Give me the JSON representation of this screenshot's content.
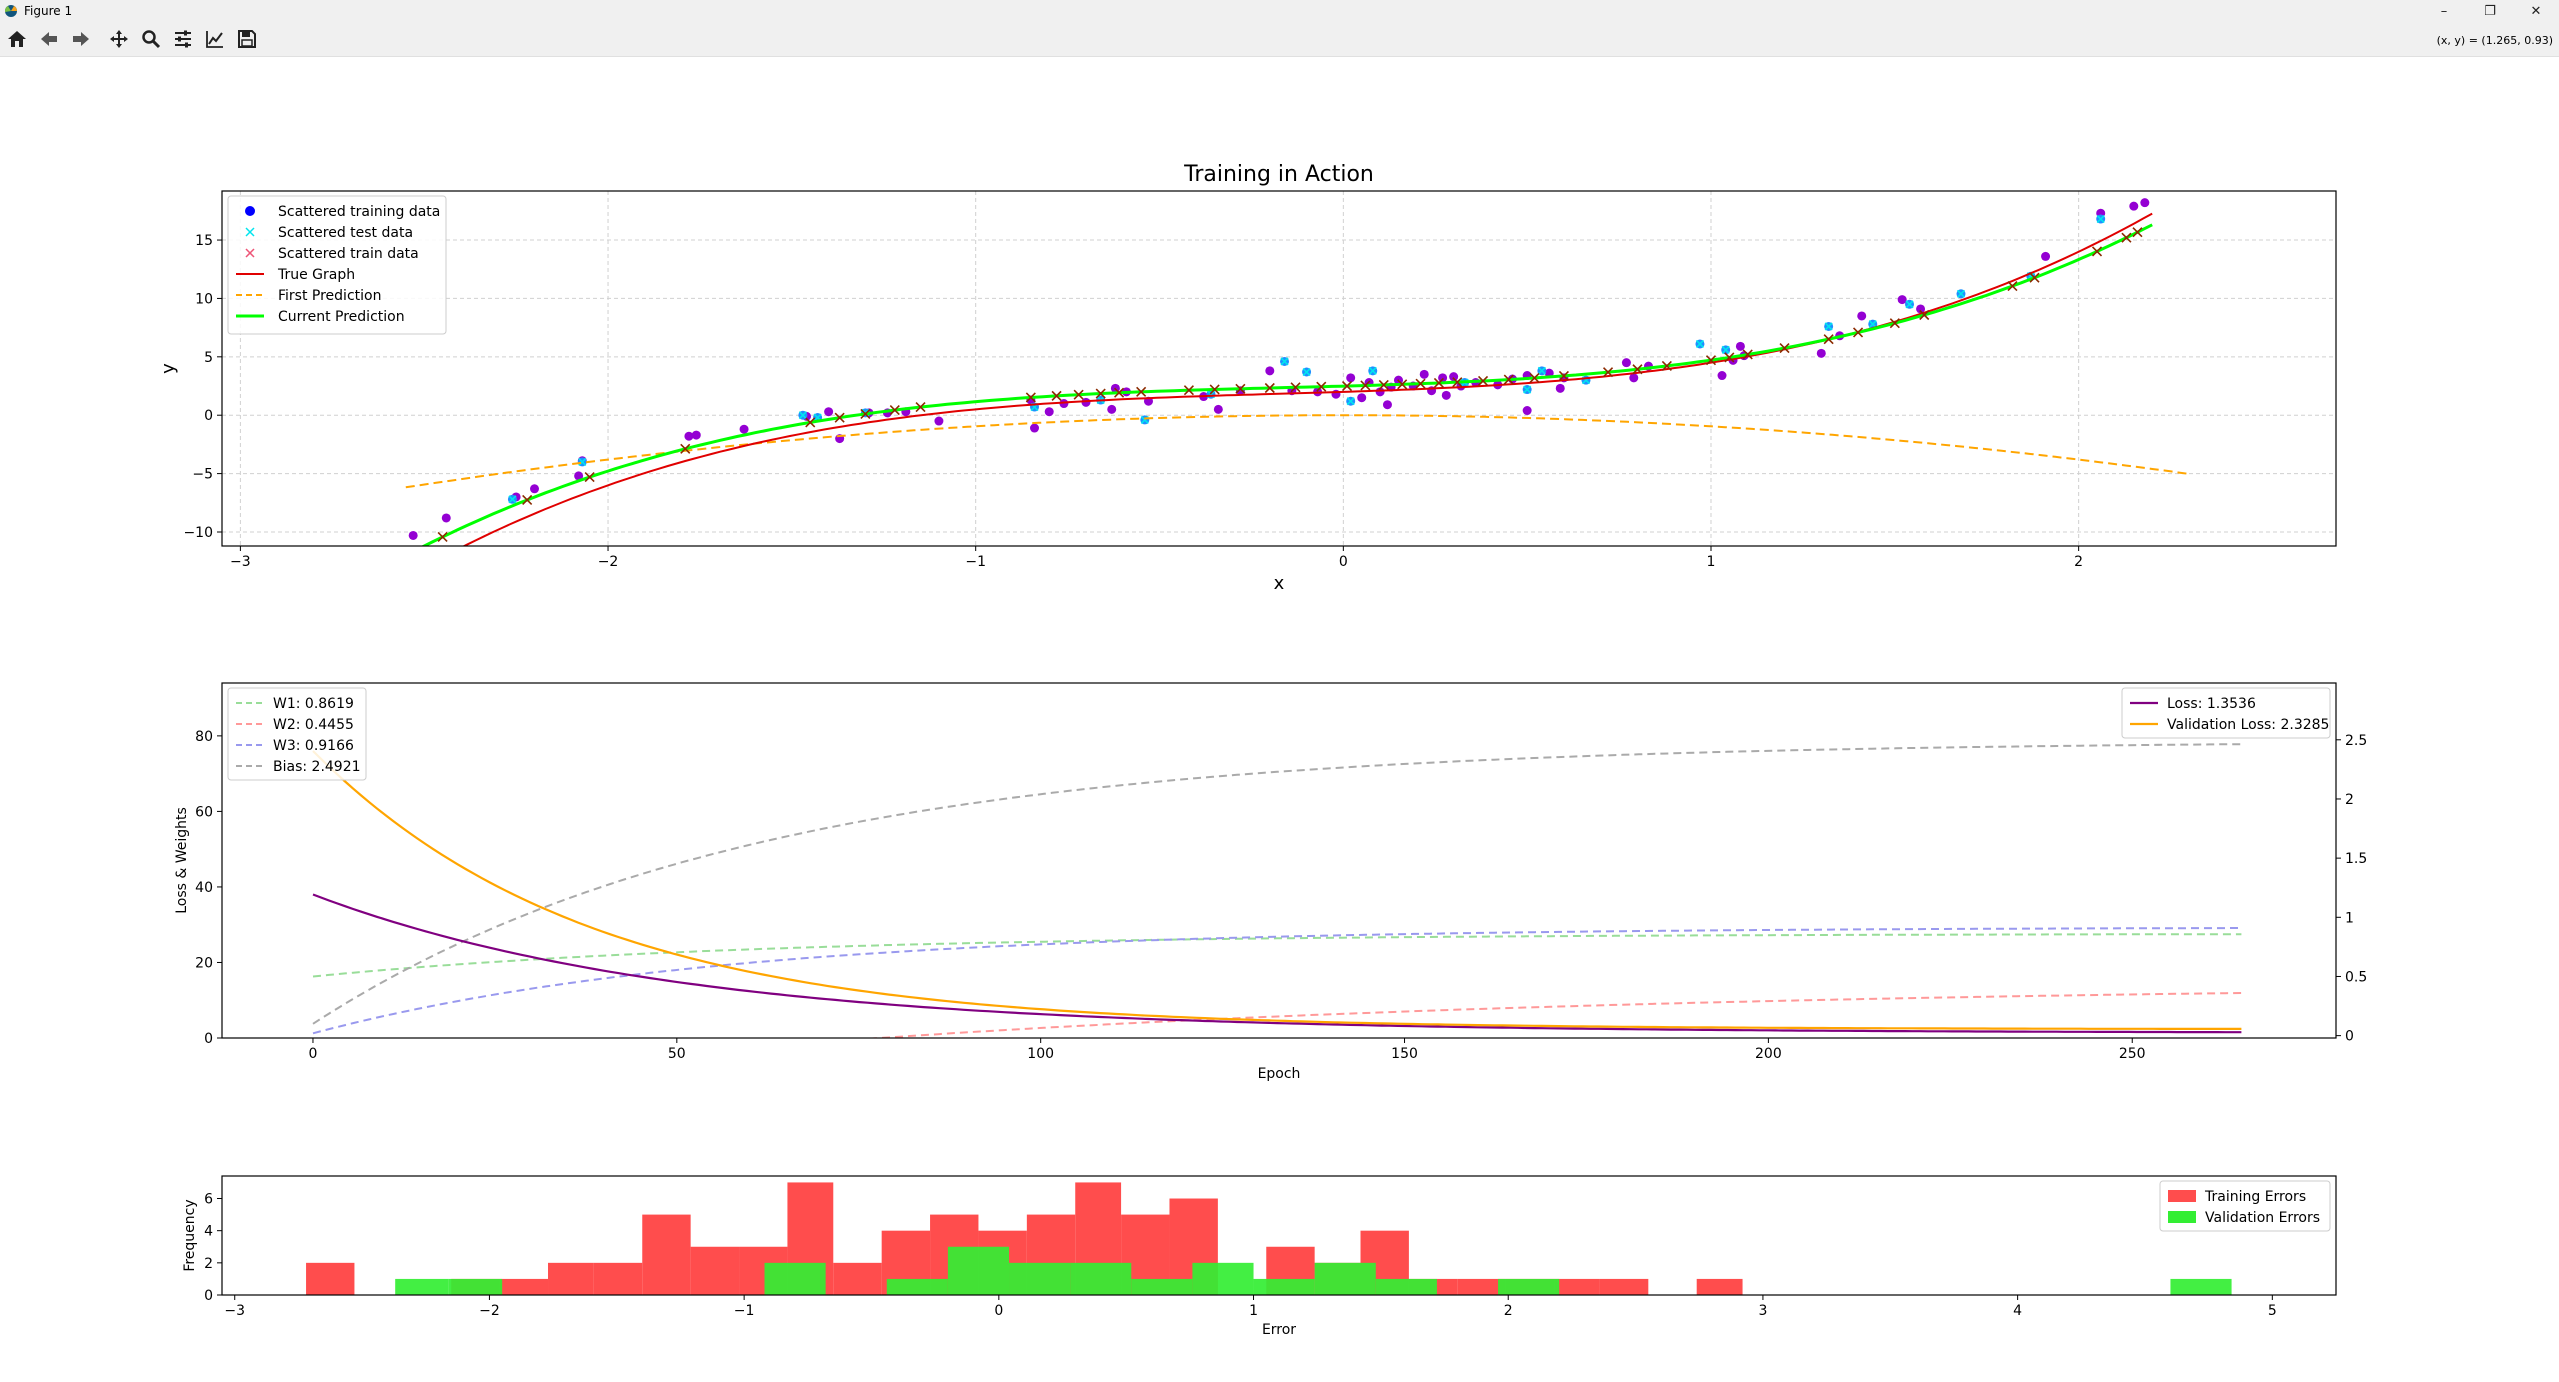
{
  "window": {
    "title": "Figure 1",
    "controls": {
      "minimize": "–",
      "restore": "❐",
      "close": "✕"
    }
  },
  "toolbar": {
    "buttons": [
      {
        "name": "home-button",
        "icon": "home-icon"
      },
      {
        "name": "back-button",
        "icon": "arrow-left-icon"
      },
      {
        "name": "forward-button",
        "icon": "arrow-right-icon"
      },
      {
        "name": "pan-button",
        "icon": "move-icon"
      },
      {
        "name": "zoom-button",
        "icon": "magnifier-icon"
      },
      {
        "name": "subplots-button",
        "icon": "sliders-icon"
      },
      {
        "name": "axes-edit-button",
        "icon": "line-chart-icon"
      },
      {
        "name": "save-button",
        "icon": "floppy-icon"
      }
    ],
    "coords": "(x, y) = (1.265, 0.93)"
  },
  "chart_data": [
    {
      "type": "scatter",
      "title": "Training in Action",
      "xlabel": "x",
      "ylabel": "y",
      "xlim": [
        -3.05,
        2.7
      ],
      "ylim": [
        -11.2,
        19.2
      ],
      "xticks": [
        -3,
        -2,
        -1,
        0,
        1,
        2
      ],
      "yticks": [
        -10,
        -5,
        0,
        5,
        10,
        15
      ],
      "grid": true,
      "legend_position": "upper-left",
      "legend": [
        "Scattered training data",
        "Scattered test data",
        "Scattered train data",
        "True Graph",
        "First Prediction",
        "Current Prediction"
      ],
      "colors": {
        "training": "#0000ff",
        "test": "#00e5ee",
        "train": "#ff0000",
        "overlay": "#9400d3",
        "true": "#e00000",
        "first": "#ffa500",
        "current": "#00ff00"
      },
      "true_graph": {
        "a3": 1.0,
        "a2": 0.5,
        "a1": 1.0,
        "a0": 2.0,
        "x_range": [
          -2.55,
          2.2
        ]
      },
      "first_prediction": {
        "a2": -0.95,
        "a1": 0.0,
        "a0": 0.0,
        "x_range": [
          -2.55,
          2.3
        ]
      },
      "current_prediction": {
        "a3": 0.9166,
        "a2": 0.4455,
        "a1": 0.8619,
        "a0": 2.4921,
        "x_range": [
          -2.55,
          2.2
        ]
      },
      "training_points": [
        [
          -2.53,
          -10.3
        ],
        [
          -2.44,
          -8.8
        ],
        [
          -2.25,
          -7.0
        ],
        [
          -2.2,
          -6.3
        ],
        [
          -2.07,
          -3.9
        ],
        [
          -2.08,
          -5.2
        ],
        [
          -1.78,
          -1.8
        ],
        [
          -1.76,
          -1.7
        ],
        [
          -1.63,
          -1.2
        ],
        [
          -1.46,
          -0.1
        ],
        [
          -1.4,
          0.3
        ],
        [
          -1.37,
          -2.0
        ],
        [
          -1.29,
          0.2
        ],
        [
          -1.24,
          0.2
        ],
        [
          -1.19,
          0.3
        ],
        [
          -1.1,
          -0.5
        ],
        [
          -0.85,
          1.3
        ],
        [
          -0.84,
          -1.1
        ],
        [
          -0.8,
          0.3
        ],
        [
          -0.76,
          1.0
        ],
        [
          -0.7,
          1.1
        ],
        [
          -0.63,
          0.5
        ],
        [
          -0.62,
          2.3
        ],
        [
          -0.59,
          2.0
        ],
        [
          -0.53,
          1.2
        ],
        [
          -0.38,
          1.6
        ],
        [
          -0.34,
          0.5
        ],
        [
          -0.28,
          2.1
        ],
        [
          -0.2,
          3.8
        ],
        [
          -0.14,
          2.1
        ],
        [
          -0.07,
          2.0
        ],
        [
          -0.02,
          1.8
        ],
        [
          0.02,
          3.2
        ],
        [
          0.05,
          1.5
        ],
        [
          0.07,
          2.8
        ],
        [
          0.1,
          2.0
        ],
        [
          0.12,
          0.9
        ],
        [
          0.13,
          2.4
        ],
        [
          0.15,
          3.0
        ],
        [
          0.19,
          2.5
        ],
        [
          0.22,
          3.5
        ],
        [
          0.24,
          2.1
        ],
        [
          0.27,
          3.2
        ],
        [
          0.28,
          1.7
        ],
        [
          0.3,
          3.3
        ],
        [
          0.32,
          2.5
        ],
        [
          0.36,
          2.8
        ],
        [
          0.42,
          2.6
        ],
        [
          0.46,
          3.1
        ],
        [
          0.5,
          3.4
        ],
        [
          0.5,
          0.4
        ],
        [
          0.56,
          3.6
        ],
        [
          0.59,
          2.3
        ],
        [
          0.6,
          3.2
        ],
        [
          0.77,
          4.5
        ],
        [
          0.79,
          3.2
        ],
        [
          0.83,
          4.2
        ],
        [
          1.03,
          3.4
        ],
        [
          1.06,
          4.7
        ],
        [
          1.08,
          5.9
        ],
        [
          1.09,
          5.1
        ],
        [
          1.3,
          5.3
        ],
        [
          1.35,
          6.8
        ],
        [
          1.41,
          8.5
        ],
        [
          1.52,
          9.9
        ],
        [
          1.57,
          9.1
        ],
        [
          1.91,
          13.6
        ],
        [
          2.06,
          17.3
        ],
        [
          2.15,
          17.9
        ],
        [
          2.18,
          18.2
        ]
      ],
      "test_points": [
        [
          -2.26,
          -7.2
        ],
        [
          -2.07,
          -4.0
        ],
        [
          -1.47,
          0.0
        ],
        [
          -1.43,
          -0.2
        ],
        [
          -1.3,
          0.2
        ],
        [
          -0.84,
          0.7
        ],
        [
          -0.66,
          1.3
        ],
        [
          -0.54,
          -0.4
        ],
        [
          -0.36,
          1.8
        ],
        [
          -0.16,
          4.6
        ],
        [
          -0.1,
          3.7
        ],
        [
          0.02,
          1.2
        ],
        [
          0.08,
          3.8
        ],
        [
          0.33,
          2.8
        ],
        [
          0.5,
          2.2
        ],
        [
          0.54,
          3.8
        ],
        [
          0.66,
          3.0
        ],
        [
          0.97,
          6.1
        ],
        [
          1.04,
          5.6
        ],
        [
          1.32,
          7.6
        ],
        [
          1.44,
          7.8
        ],
        [
          1.54,
          9.5
        ],
        [
          1.68,
          10.4
        ],
        [
          1.87,
          11.9
        ],
        [
          2.06,
          16.8
        ]
      ],
      "train_x": [
        -2.45,
        -2.22,
        -2.05,
        -1.79,
        -1.45,
        -1.37,
        -1.3,
        -1.22,
        -1.15,
        -0.85,
        -0.78,
        -0.72,
        -0.66,
        -0.61,
        -0.55,
        -0.42,
        -0.35,
        -0.28,
        -0.2,
        -0.13,
        -0.06,
        0.01,
        0.06,
        0.11,
        0.16,
        0.21,
        0.26,
        0.31,
        0.38,
        0.45,
        0.52,
        0.6,
        0.72,
        0.8,
        0.88,
        1.0,
        1.05,
        1.1,
        1.2,
        1.32,
        1.4,
        1.5,
        1.58,
        1.82,
        1.88,
        2.05,
        2.13,
        2.16
      ]
    },
    {
      "type": "line",
      "xlabel": "Epoch",
      "ylabel_left": "Loss & Weights",
      "xlim": [
        -12.5,
        278
      ],
      "ylim_left": [
        0,
        94
      ],
      "ylim_right": [
        -0.02,
        2.98
      ],
      "xticks": [
        0,
        50,
        100,
        150,
        200,
        250
      ],
      "yticks_left": [
        0,
        20,
        40,
        60,
        80
      ],
      "yticks_right": [
        0.0,
        0.5,
        1.0,
        1.5,
        2.0,
        2.5
      ],
      "epochs": 266,
      "legend_left": [
        "W1: 0.8619",
        "W2: 0.4455",
        "W3: 0.9166",
        "Bias: 2.4921"
      ],
      "legend_right": [
        "Loss: 1.3536",
        "Validation Loss: 2.3285"
      ],
      "series": [
        {
          "name": "Loss: 1.3536",
          "axis": "left",
          "color": "#800080",
          "dashed": false,
          "start": 38.0,
          "end": 1.3536,
          "tau": 50
        },
        {
          "name": "Validation Loss: 2.3285",
          "axis": "left",
          "color": "#ffa500",
          "dashed": false,
          "start": 76.0,
          "end": 2.3285,
          "tau": 38
        },
        {
          "name": "W1: 0.8619",
          "axis": "right",
          "color": "#99dd99",
          "dashed": true,
          "start": 0.5,
          "end": 0.8619,
          "tau": 60
        },
        {
          "name": "W2: 0.4455",
          "axis": "right",
          "color": "#ff9999",
          "dashed": true,
          "start": -0.5,
          "end": 0.4455,
          "tau": 110
        },
        {
          "name": "W3: 0.9166",
          "axis": "right",
          "color": "#9999ee",
          "dashed": true,
          "start": 0.02,
          "end": 0.9166,
          "tau": 55
        },
        {
          "name": "Bias: 2.4921",
          "axis": "right",
          "color": "#aaaaaa",
          "dashed": true,
          "start": 0.1,
          "end": 2.4921,
          "tau": 60
        }
      ]
    },
    {
      "type": "bar",
      "xlabel": "Error",
      "ylabel": "Frequency",
      "xlim": [
        -3.05,
        5.25
      ],
      "ylim": [
        0,
        7.4
      ],
      "xticks": [
        -3,
        -2,
        -1,
        0,
        1,
        2,
        3,
        4,
        5
      ],
      "yticks": [
        0,
        2,
        4,
        6
      ],
      "legend_position": "upper-right",
      "series": [
        {
          "name": "Training Errors",
          "color": "#ff4d4d",
          "bins": [
            [
              -2.72,
              -2.53,
              2
            ],
            [
              -2.15,
              -1.96,
              1
            ],
            [
              -1.96,
              -1.77,
              1
            ],
            [
              -1.77,
              -1.59,
              2
            ],
            [
              -1.59,
              -1.4,
              2
            ],
            [
              -1.4,
              -1.21,
              5
            ],
            [
              -1.21,
              -1.02,
              3
            ],
            [
              -1.02,
              -0.83,
              3
            ],
            [
              -0.83,
              -0.65,
              7
            ],
            [
              -0.65,
              -0.46,
              2
            ],
            [
              -0.46,
              -0.27,
              4
            ],
            [
              -0.27,
              -0.08,
              5
            ],
            [
              -0.08,
              0.11,
              4
            ],
            [
              0.11,
              0.3,
              5
            ],
            [
              0.3,
              0.48,
              7
            ],
            [
              0.48,
              0.67,
              5
            ],
            [
              0.67,
              0.86,
              6
            ],
            [
              1.05,
              1.24,
              3
            ],
            [
              1.24,
              1.42,
              2
            ],
            [
              1.42,
              1.61,
              4
            ],
            [
              1.61,
              1.8,
              1
            ],
            [
              1.8,
              1.99,
              1
            ],
            [
              1.99,
              2.18,
              1
            ],
            [
              2.18,
              2.36,
              1
            ],
            [
              2.36,
              2.55,
              1
            ],
            [
              2.74,
              2.92,
              1
            ]
          ]
        },
        {
          "name": "Validation Errors",
          "color": "#33ee33",
          "bins": [
            [
              -2.37,
              -2.16,
              1
            ],
            [
              -2.16,
              -1.95,
              1
            ],
            [
              -0.92,
              -0.68,
              2
            ],
            [
              -0.44,
              -0.2,
              1
            ],
            [
              -0.2,
              0.04,
              3
            ],
            [
              0.04,
              0.28,
              2
            ],
            [
              0.28,
              0.52,
              2
            ],
            [
              0.52,
              0.76,
              1
            ],
            [
              0.76,
              1.0,
              2
            ],
            [
              1.0,
              1.24,
              1
            ],
            [
              1.24,
              1.48,
              2
            ],
            [
              1.48,
              1.72,
              1
            ],
            [
              1.96,
              2.2,
              1
            ],
            [
              4.6,
              4.84,
              1
            ]
          ]
        }
      ]
    }
  ]
}
